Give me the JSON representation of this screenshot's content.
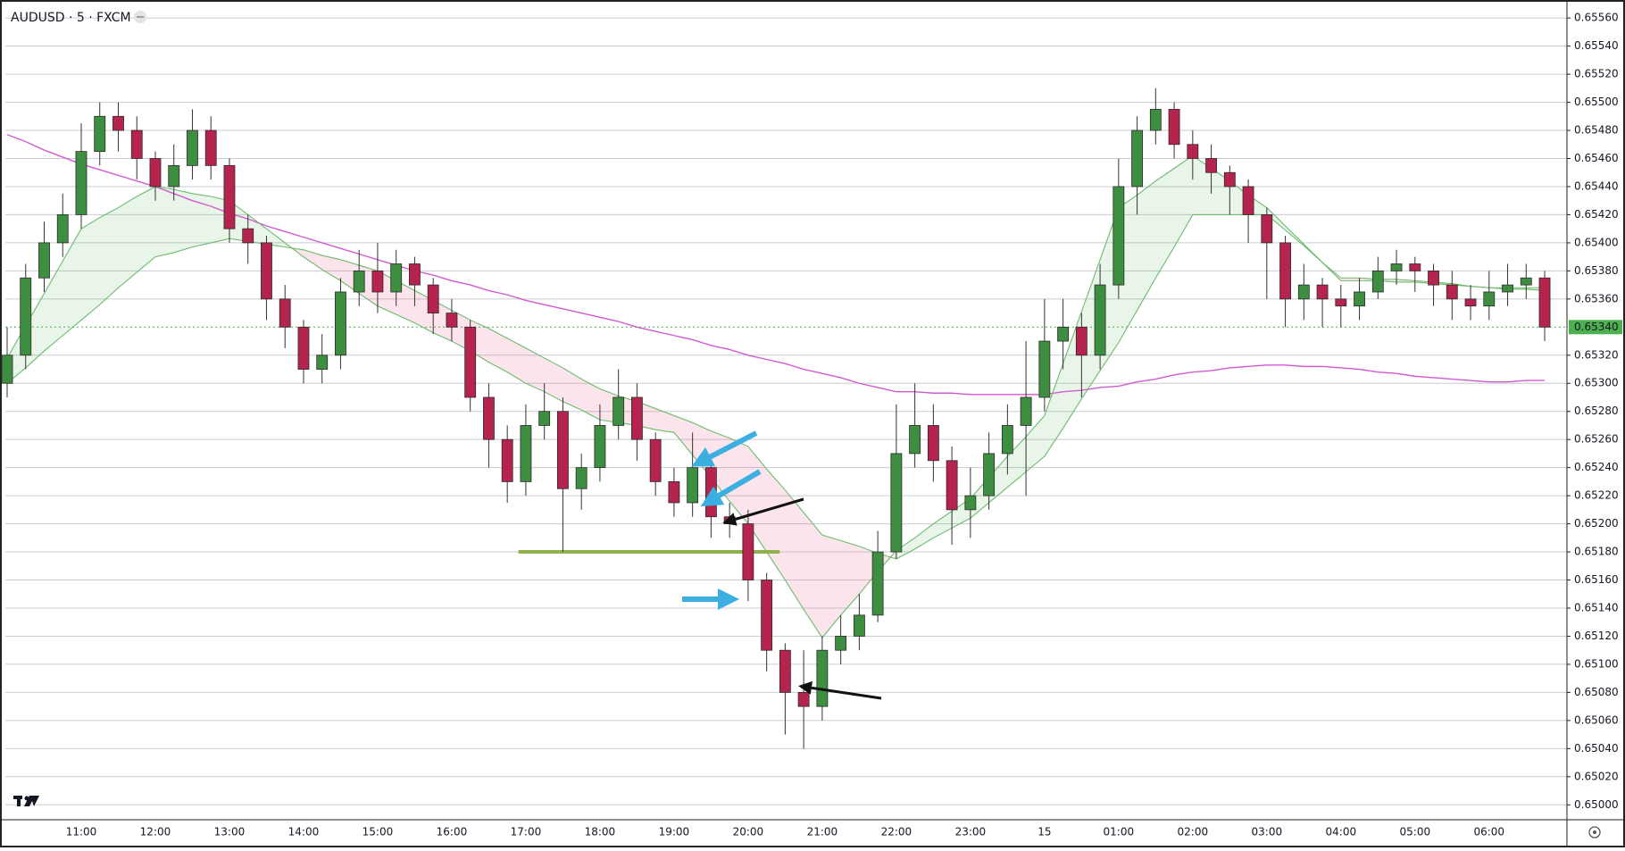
{
  "chart_data": {
    "type": "candlestick",
    "title": "AUDUSD · 5 · FXCM",
    "up_color": "#3e8e41",
    "down_color": "#b5234f",
    "categories": [
      null,
      null,
      null,
      null,
      "11:00",
      null,
      null,
      null,
      "12:00",
      null,
      null,
      null,
      "13:00",
      null,
      null,
      null,
      "14:00",
      null,
      null,
      null,
      "15:00",
      null,
      null,
      null,
      "16:00",
      null,
      null,
      null,
      "17:00",
      null,
      null,
      null,
      "18:00",
      null,
      null,
      null,
      "19:00",
      null,
      null,
      null,
      "20:00",
      null,
      null,
      null,
      "21:00",
      null,
      null,
      null,
      "22:00",
      null,
      null,
      null,
      "23:00",
      null,
      null,
      null,
      "15",
      null,
      null,
      null,
      "01:00",
      null,
      null,
      null,
      "02:00",
      null,
      null,
      null,
      "03:00",
      null,
      null,
      null,
      "04:00",
      null,
      null,
      null,
      "05:00",
      null,
      null,
      null,
      "06:00",
      null,
      null,
      null
    ],
    "open": [
      0.653,
      0.6532,
      0.65375,
      0.654,
      0.6542,
      0.65465,
      0.6549,
      0.6548,
      0.6546,
      0.6544,
      0.65455,
      0.6548,
      0.65455,
      0.6541,
      0.654,
      0.6536,
      0.6534,
      0.6531,
      0.6532,
      0.65365,
      0.6538,
      0.65365,
      0.65385,
      0.6537,
      0.6535,
      0.6534,
      0.6529,
      0.6526,
      0.6523,
      0.6527,
      0.6528,
      0.65225,
      0.6524,
      0.6527,
      0.6529,
      0.6526,
      0.6523,
      0.65215,
      0.6524,
      0.65205,
      0.652,
      0.6516,
      0.6511,
      0.6508,
      0.6507,
      0.6511,
      0.6512,
      0.65135,
      0.6518,
      0.6525,
      0.6527,
      0.65245,
      0.6521,
      0.6522,
      0.6525,
      0.6527,
      0.6529,
      0.6533,
      0.6534,
      0.6532,
      0.6537,
      0.6544,
      0.6548,
      0.65495,
      0.6547,
      0.6546,
      0.6545,
      0.6544,
      0.6542,
      0.654,
      0.6536,
      0.6537,
      0.6536,
      0.65355,
      0.65365,
      0.6538,
      0.65385,
      0.6538,
      0.6537,
      0.6536,
      0.65355,
      0.65365,
      0.6537,
      0.65375
    ],
    "high": [
      0.6534,
      0.65385,
      0.65415,
      0.65435,
      0.65485,
      0.655,
      0.655,
      0.6549,
      0.65465,
      0.6547,
      0.65495,
      0.6549,
      0.6546,
      0.6542,
      0.65405,
      0.6537,
      0.65345,
      0.65335,
      0.65375,
      0.65395,
      0.654,
      0.65395,
      0.6539,
      0.65375,
      0.6536,
      0.65345,
      0.653,
      0.6527,
      0.65285,
      0.653,
      0.6529,
      0.6525,
      0.65285,
      0.6531,
      0.653,
      0.65265,
      0.6524,
      0.65265,
      0.6525,
      0.65215,
      0.6521,
      0.65165,
      0.65115,
      0.6511,
      0.6512,
      0.65135,
      0.6515,
      0.65195,
      0.65285,
      0.653,
      0.65285,
      0.65255,
      0.6524,
      0.65265,
      0.65285,
      0.6533,
      0.6536,
      0.6536,
      0.6535,
      0.65385,
      0.6546,
      0.6549,
      0.6551,
      0.655,
      0.6548,
      0.6547,
      0.65455,
      0.65445,
      0.65425,
      0.65405,
      0.65385,
      0.65375,
      0.6537,
      0.65375,
      0.6539,
      0.65395,
      0.6539,
      0.65385,
      0.6538,
      0.6537,
      0.6538,
      0.65385,
      0.65385,
      0.6538
    ],
    "low": [
      0.6529,
      0.6531,
      0.65365,
      0.6539,
      0.6541,
      0.65455,
      0.65465,
      0.65445,
      0.6543,
      0.6543,
      0.65445,
      0.65445,
      0.654,
      0.65385,
      0.65345,
      0.65325,
      0.653,
      0.653,
      0.6531,
      0.65355,
      0.6535,
      0.65355,
      0.65355,
      0.65335,
      0.6533,
      0.6528,
      0.6524,
      0.65215,
      0.6522,
      0.6526,
      0.6518,
      0.6521,
      0.6523,
      0.6526,
      0.65245,
      0.6522,
      0.65205,
      0.65205,
      0.6519,
      0.6519,
      0.65145,
      0.65095,
      0.6505,
      0.6504,
      0.6506,
      0.651,
      0.6511,
      0.6513,
      0.65175,
      0.6524,
      0.6523,
      0.65185,
      0.6519,
      0.6521,
      0.65235,
      0.6522,
      0.6528,
      0.6531,
      0.6529,
      0.6531,
      0.6536,
      0.6542,
      0.6547,
      0.6546,
      0.65445,
      0.65435,
      0.6542,
      0.654,
      0.6536,
      0.6534,
      0.65345,
      0.6534,
      0.6534,
      0.65345,
      0.6536,
      0.6537,
      0.65365,
      0.65355,
      0.65345,
      0.65345,
      0.65345,
      0.65355,
      0.6536,
      0.6533
    ],
    "close": [
      0.6532,
      0.65375,
      0.654,
      0.6542,
      0.65465,
      0.6549,
      0.6548,
      0.6546,
      0.6544,
      0.65455,
      0.6548,
      0.65455,
      0.6541,
      0.654,
      0.6536,
      0.6534,
      0.6531,
      0.6532,
      0.65365,
      0.6538,
      0.65365,
      0.65385,
      0.6537,
      0.6535,
      0.6534,
      0.6529,
      0.6526,
      0.6523,
      0.6527,
      0.6528,
      0.65225,
      0.6524,
      0.6527,
      0.6529,
      0.6526,
      0.6523,
      0.65215,
      0.6524,
      0.65205,
      0.652,
      0.6516,
      0.6511,
      0.6508,
      0.6507,
      0.6511,
      0.6512,
      0.65135,
      0.6518,
      0.6525,
      0.6527,
      0.65245,
      0.6521,
      0.6522,
      0.6525,
      0.6527,
      0.6529,
      0.6533,
      0.6534,
      0.6532,
      0.6537,
      0.6544,
      0.6548,
      0.65495,
      0.6547,
      0.6546,
      0.6545,
      0.6544,
      0.6542,
      0.654,
      0.6536,
      0.6537,
      0.6536,
      0.65355,
      0.65365,
      0.6538,
      0.65385,
      0.6538,
      0.6537,
      0.6536,
      0.65355,
      0.65365,
      0.6537,
      0.65375,
      0.6534
    ],
    "lines": [
      {
        "color": "#d35ad3",
        "values": [
          0.65477,
          0.65472,
          0.65466,
          0.65461,
          0.65456,
          0.65452,
          0.65448,
          0.65444,
          0.6544,
          0.65435,
          0.6543,
          0.65426,
          0.65421,
          0.65417,
          0.65412,
          0.65408,
          0.65404,
          0.654,
          0.65396,
          0.65392,
          0.65388,
          0.65384,
          0.6538,
          0.65377,
          0.65373,
          0.6537,
          0.65366,
          0.65363,
          0.65359,
          0.65356,
          0.65353,
          0.6535,
          0.65347,
          0.65344,
          0.6534,
          0.65337,
          0.65334,
          0.65331,
          0.65327,
          0.65324,
          0.6532,
          0.65317,
          0.65314,
          0.6531,
          0.65307,
          0.65304,
          0.653,
          0.65297,
          0.65294,
          0.65294,
          0.65293,
          0.65293,
          0.65292,
          0.65292,
          0.65292,
          0.65292,
          0.65292,
          0.65294,
          0.65295,
          0.65297,
          0.65298,
          0.65301,
          0.65303,
          0.65306,
          0.65308,
          0.65309,
          0.65311,
          0.65312,
          0.65313,
          0.65313,
          0.65312,
          0.65312,
          0.65311,
          0.6531,
          0.65308,
          0.65307,
          0.65305,
          0.65304,
          0.65303,
          0.65302,
          0.65301,
          0.65301,
          0.65302,
          0.65302
        ]
      },
      {
        "color": "#6dbb6d",
        "values": [
          0.65318,
          0.65341,
          0.65364,
          0.65387,
          0.6541,
          0.65418,
          0.65425,
          0.65433,
          0.6544,
          0.65438,
          0.65435,
          0.65433,
          0.6543,
          0.6542,
          0.6541,
          0.654,
          0.6539,
          0.65381,
          0.65373,
          0.65364,
          0.65355,
          0.65349,
          0.65343,
          0.65336,
          0.6533,
          0.65323,
          0.65315,
          0.65308,
          0.653,
          0.65294,
          0.65287,
          0.65281,
          0.65274,
          0.65272,
          0.6527,
          0.65267,
          0.65265,
          0.65249,
          0.65233,
          0.65216,
          0.652,
          0.6518,
          0.6516,
          0.65139,
          0.65119,
          0.65135,
          0.6515,
          0.65166,
          0.65181,
          0.6519,
          0.652,
          0.65209,
          0.65218,
          0.65233,
          0.65248,
          0.65262,
          0.65277,
          0.65314,
          0.65351,
          0.65388,
          0.65425,
          0.65434,
          0.65444,
          0.65453,
          0.65462,
          0.65453,
          0.65444,
          0.65434,
          0.65425,
          0.65412,
          0.65399,
          0.65386,
          0.65373,
          0.65373,
          0.65373,
          0.65372,
          0.65372,
          0.65371,
          0.6537,
          0.65369,
          0.65368,
          0.65368,
          0.65368,
          0.65368
        ]
      },
      {
        "color": "#6dbb6d",
        "values": [
          0.653,
          0.65311,
          0.65323,
          0.65334,
          0.65345,
          0.65356,
          0.65368,
          0.65379,
          0.6539,
          0.65393,
          0.65397,
          0.654,
          0.65403,
          0.65401,
          0.65399,
          0.65397,
          0.65395,
          0.65391,
          0.65388,
          0.65384,
          0.6538,
          0.65373,
          0.65366,
          0.65359,
          0.65352,
          0.65345,
          0.65339,
          0.65332,
          0.65325,
          0.65318,
          0.65311,
          0.65303,
          0.65296,
          0.65291,
          0.65287,
          0.65282,
          0.65277,
          0.65272,
          0.65266,
          0.65261,
          0.65255,
          0.65239,
          0.65224,
          0.65208,
          0.65192,
          0.65188,
          0.65184,
          0.65179,
          0.65175,
          0.65182,
          0.6519,
          0.65197,
          0.65204,
          0.65215,
          0.65226,
          0.65237,
          0.65248,
          0.65268,
          0.65289,
          0.65309,
          0.65329,
          0.65352,
          0.65375,
          0.65397,
          0.6542,
          0.6542,
          0.6542,
          0.6542,
          0.6542,
          0.65409,
          0.65398,
          0.65386,
          0.65375,
          0.65375,
          0.65374,
          0.65374,
          0.65373,
          0.65372,
          0.65371,
          0.65369,
          0.65368,
          0.65367,
          0.65367,
          0.65366
        ]
      }
    ],
    "band_up_color": "rgba(76,175,80,0.13)",
    "band_down_color": "rgba(233,30,99,0.12)",
    "support_line": {
      "value": 0.6518,
      "color": "#8fb24a"
    },
    "last_price": {
      "value": 0.6534,
      "label": "0.65340",
      "color": "#4caf50"
    },
    "ylim": [
      0.6499,
      0.65569
    ],
    "yticks": [
      {
        "value": 0.65,
        "label": "0.65000"
      },
      {
        "value": 0.6502,
        "label": "0.65020"
      },
      {
        "value": 0.6504,
        "label": "0.65040"
      },
      {
        "value": 0.6506,
        "label": "0.65060"
      },
      {
        "value": 0.6508,
        "label": "0.65080"
      },
      {
        "value": 0.651,
        "label": "0.65100"
      },
      {
        "value": 0.6512,
        "label": "0.65120"
      },
      {
        "value": 0.6514,
        "label": "0.65140"
      },
      {
        "value": 0.6516,
        "label": "0.65160"
      },
      {
        "value": 0.6518,
        "label": "0.65180"
      },
      {
        "value": 0.652,
        "label": "0.65200"
      },
      {
        "value": 0.6522,
        "label": "0.65220"
      },
      {
        "value": 0.6524,
        "label": "0.65240"
      },
      {
        "value": 0.6526,
        "label": "0.65260"
      },
      {
        "value": 0.6528,
        "label": "0.65280"
      },
      {
        "value": 0.653,
        "label": "0.65300"
      },
      {
        "value": 0.6532,
        "label": "0.65320"
      },
      {
        "value": 0.6536,
        "label": "0.65360"
      },
      {
        "value": 0.6538,
        "label": "0.65380"
      },
      {
        "value": 0.654,
        "label": "0.65400"
      },
      {
        "value": 0.6542,
        "label": "0.65420"
      },
      {
        "value": 0.6544,
        "label": "0.65440"
      },
      {
        "value": 0.6546,
        "label": "0.65460"
      },
      {
        "value": 0.6548,
        "label": "0.65480"
      },
      {
        "value": 0.655,
        "label": "0.65500"
      },
      {
        "value": 0.6552,
        "label": "0.65520"
      },
      {
        "value": 0.6554,
        "label": "0.65540"
      },
      {
        "value": 0.6556,
        "label": "0.65560"
      }
    ],
    "grid": true
  }
}
